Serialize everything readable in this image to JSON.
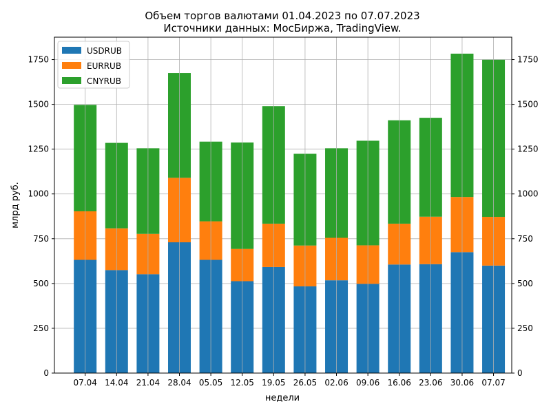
{
  "chart_data": {
    "type": "bar",
    "stacked": true,
    "title_line1": "Объем торгов валютами 01.04.2023 по 07.07.2023",
    "title_line2": "Источники данных: МосБиржа, TradingView.",
    "xlabel": "недели",
    "ylabel": "млрд руб.",
    "ylim": [
      0,
      1875
    ],
    "yticks": [
      0,
      250,
      500,
      750,
      1000,
      1250,
      1500,
      1750
    ],
    "grid": true,
    "legend_position": "top-left",
    "categories": [
      "07.04",
      "14.04",
      "21.04",
      "28.04",
      "05.05",
      "12.05",
      "19.05",
      "26.05",
      "02.06",
      "09.06",
      "16.06",
      "23.06",
      "30.06",
      "07.07"
    ],
    "series": [
      {
        "name": "USDRUB",
        "color": "#1f77b4",
        "values": [
          632,
          575,
          552,
          730,
          632,
          513,
          592,
          484,
          518,
          498,
          606,
          608,
          675,
          600
        ]
      },
      {
        "name": "EURRUB",
        "color": "#ff7f0e",
        "values": [
          271,
          233,
          225,
          360,
          215,
          180,
          242,
          228,
          237,
          215,
          228,
          265,
          308,
          272
        ]
      },
      {
        "name": "CNYRUB",
        "color": "#2ca02c",
        "values": [
          594,
          477,
          478,
          585,
          445,
          594,
          656,
          512,
          500,
          584,
          577,
          552,
          800,
          877
        ]
      }
    ]
  }
}
